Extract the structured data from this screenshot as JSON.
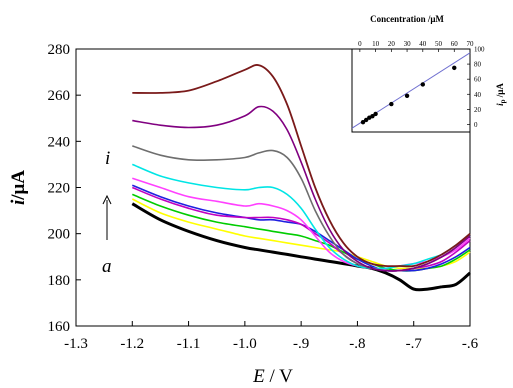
{
  "chart_data": [
    {
      "type": "line",
      "title": "",
      "xlabel_italic": "E",
      "xlabel_unit": " / V",
      "ylabel_italic": "i",
      "ylabel_unit": "/μA",
      "xlim": [
        -1.3,
        -0.6
      ],
      "ylim": [
        160,
        280
      ],
      "xticks": [
        "-1.3",
        "-1.2",
        "-1.1",
        "-1.0",
        "-.9",
        "-.8",
        "-.7",
        "-.6"
      ],
      "xtick_values": [
        -1.3,
        -1.2,
        -1.1,
        -1.0,
        -0.9,
        -0.8,
        -0.7,
        -0.6
      ],
      "yticks": [
        "160",
        "180",
        "200",
        "220",
        "240",
        "260",
        "280"
      ],
      "ytick_values": [
        160,
        180,
        200,
        220,
        240,
        260,
        280
      ],
      "grid": false,
      "annotations": {
        "top_curve_label": "i",
        "bottom_curve_label": "a",
        "arrow": "up"
      },
      "x": [
        -1.2,
        -1.15,
        -1.1,
        -1.05,
        -1.0,
        -0.975,
        -0.95,
        -0.925,
        -0.9,
        -0.875,
        -0.85,
        -0.825,
        -0.8,
        -0.775,
        -0.75,
        -0.725,
        -0.7,
        -0.675,
        -0.65,
        -0.625,
        -0.6
      ],
      "series": [
        {
          "color": "#000000",
          "width": 3,
          "values": [
            213,
            206,
            201,
            197,
            194,
            193,
            192,
            191,
            190,
            189,
            188,
            187,
            186,
            185,
            183,
            180,
            176,
            176,
            177,
            178,
            183
          ]
        },
        {
          "color": "#ffff00",
          "width": 1.6,
          "values": [
            215,
            209,
            205,
            202,
            199,
            198,
            197,
            196,
            195,
            194,
            193,
            192,
            190,
            188,
            186,
            185,
            185,
            185,
            186,
            188,
            192
          ]
        },
        {
          "color": "#00cc00",
          "width": 1.6,
          "values": [
            217,
            212,
            208,
            205,
            203,
            202,
            201,
            200,
            199,
            197,
            195,
            192,
            189,
            187,
            185,
            184,
            184,
            185,
            186,
            189,
            193
          ]
        },
        {
          "color": "#1f1fe0",
          "width": 1.6,
          "values": [
            221,
            216,
            212,
            209,
            207,
            206,
            206,
            205,
            204,
            201,
            197,
            193,
            189,
            186,
            184,
            184,
            184,
            185,
            187,
            190,
            194
          ]
        },
        {
          "color": "#c000c0",
          "width": 1.6,
          "values": [
            220,
            215,
            211,
            208,
            207,
            207,
            207,
            206,
            204,
            200,
            196,
            191,
            187,
            185,
            184,
            184,
            185,
            186,
            188,
            192,
            197
          ]
        },
        {
          "color": "#ff40ff",
          "width": 1.6,
          "values": [
            224,
            220,
            216,
            214,
            212,
            213,
            212,
            210,
            206,
            199,
            192,
            188,
            186,
            185,
            185,
            186,
            187,
            188,
            190,
            193,
            198
          ]
        },
        {
          "color": "#00e5e5",
          "width": 1.6,
          "values": [
            230,
            225,
            222,
            220,
            219,
            220,
            220,
            217,
            211,
            202,
            194,
            189,
            186,
            185,
            185,
            186,
            187,
            189,
            191,
            195,
            199
          ]
        },
        {
          "color": "#6e6e6e",
          "width": 1.6,
          "values": [
            238,
            234,
            232,
            232,
            233,
            235,
            236,
            233,
            224,
            210,
            199,
            191,
            187,
            185,
            184,
            184,
            185,
            187,
            190,
            194,
            200
          ]
        },
        {
          "color": "#800080",
          "width": 1.6,
          "values": [
            249,
            247,
            246,
            247,
            251,
            255,
            253,
            245,
            231,
            215,
            202,
            193,
            188,
            185,
            184,
            184,
            185,
            187,
            190,
            194,
            199
          ]
        },
        {
          "color": "#7a1a1a",
          "width": 1.8,
          "values": [
            261,
            261,
            262,
            266,
            271,
            273,
            268,
            256,
            238,
            220,
            206,
            196,
            190,
            187,
            186,
            186,
            186,
            188,
            191,
            195,
            200
          ]
        }
      ]
    },
    {
      "type": "scatter",
      "title": "Concentration /μM",
      "ylabel_italic": "i",
      "ylabel_sub": "p",
      "ylabel_unit": " /μA",
      "xlim": [
        -5,
        70
      ],
      "ylim": [
        -10,
        100
      ],
      "xticks": [
        "0",
        "10",
        "20",
        "30",
        "40",
        "50",
        "60",
        "70"
      ],
      "xtick_values": [
        0,
        10,
        20,
        30,
        40,
        50,
        60,
        70
      ],
      "yticks": [
        "0",
        "20",
        "40",
        "60",
        "80",
        "100"
      ],
      "ytick_values": [
        0,
        20,
        40,
        60,
        80,
        100
      ],
      "points_x": [
        2,
        4,
        6,
        8,
        10,
        20,
        30,
        40,
        60
      ],
      "points_y": [
        3,
        6,
        9,
        11,
        14,
        27,
        38,
        53,
        75
      ],
      "fit_line": {
        "x": [
          -5,
          70
        ],
        "y": [
          -5,
          95
        ]
      }
    }
  ]
}
